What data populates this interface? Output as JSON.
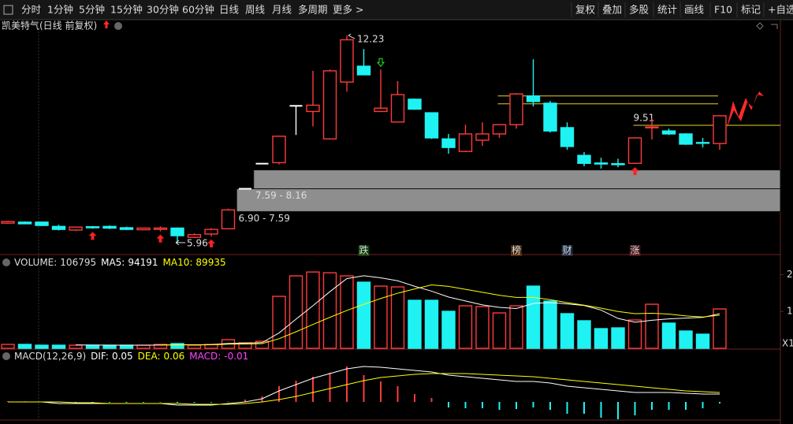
{
  "toolbar": {
    "periods": [
      "分时",
      "1分钟",
      "5分钟",
      "15分钟",
      "30分钟",
      "60分钟",
      "日线",
      "周线",
      "月线",
      "多周期",
      "更多 >"
    ],
    "active_index": 6,
    "tools": [
      "复权",
      "叠加",
      "多股",
      "统计",
      "画线",
      "F10",
      "标记",
      "+自选"
    ]
  },
  "chart_data": [
    {
      "type": "candlestick",
      "title": "凯美特气(日线 前复权)",
      "ylim": [
        5.67,
        12.35
      ],
      "colors": {
        "up": "#ff3b3b",
        "down": "#1ff2f2",
        "flat": "#ffffff"
      },
      "open": [
        6.55,
        6.58,
        6.58,
        6.45,
        6.34,
        6.44,
        6.45,
        6.41,
        6.35,
        6.36,
        6.4,
        6.12,
        6.22,
        6.38,
        7.59,
        8.35,
        8.38,
        10.1,
        9.93,
        9.1,
        10.82,
        11.3,
        9.93,
        9.61,
        10.3,
        9.89,
        9.1,
        8.72,
        9.06,
        9.25,
        9.53,
        10.4,
        10.18,
        9.44,
        8.6,
        8.37,
        8.35,
        8.36,
        9.44,
        9.34,
        9.25,
        8.99,
        8.96
      ],
      "high": [
        6.62,
        6.6,
        6.6,
        6.5,
        6.44,
        6.46,
        6.48,
        6.44,
        6.41,
        6.45,
        6.42,
        6.24,
        6.4,
        6.99,
        7.59,
        8.35,
        9.2,
        10.1,
        11.16,
        11.2,
        12.23,
        11.82,
        11.2,
        10.85,
        10.32,
        9.89,
        9.25,
        9.53,
        9.6,
        9.55,
        10.49,
        11.51,
        10.25,
        9.6,
        8.7,
        8.53,
        8.5,
        9.15,
        9.72,
        9.41,
        9.27,
        9.13,
        9.81
      ],
      "low": [
        6.53,
        6.52,
        6.46,
        6.33,
        6.31,
        6.38,
        6.37,
        6.34,
        6.33,
        6.3,
        5.96,
        6.1,
        6.15,
        6.36,
        7.59,
        8.35,
        8.33,
        9.22,
        9.48,
        9.08,
        10.53,
        11.04,
        9.93,
        9.61,
        9.98,
        9.1,
        8.65,
        8.7,
        8.89,
        9.13,
        9.41,
        10.08,
        9.29,
        8.77,
        8.27,
        8.2,
        8.24,
        8.34,
        9.08,
        9.22,
        8.92,
        8.84,
        8.77
      ],
      "close": [
        6.6,
        6.53,
        6.48,
        6.36,
        6.43,
        6.41,
        6.4,
        6.36,
        6.4,
        6.4,
        6.17,
        6.2,
        6.36,
        6.95,
        7.59,
        8.35,
        9.18,
        10.1,
        10.12,
        11.16,
        12.1,
        11.04,
        10.03,
        10.44,
        10.0,
        9.13,
        8.84,
        9.25,
        9.25,
        9.53,
        10.46,
        10.23,
        9.34,
        8.87,
        8.36,
        8.34,
        8.32,
        9.13,
        9.46,
        9.25,
        8.94,
        8.97,
        9.8
      ],
      "zones": [
        {
          "label": "7.59 - 8.16",
          "low": 7.59,
          "high": 8.16,
          "from": 14
        },
        {
          "label": "6.90 - 7.59",
          "low": 6.9,
          "high": 7.59,
          "from": 13
        }
      ],
      "levels": [
        {
          "value": 10.4,
          "from": 29,
          "to": 42,
          "color": "#e6d21e"
        },
        {
          "value": 10.16,
          "from": 29,
          "to": 42,
          "color": "#e6d21e"
        },
        {
          "value": 9.51,
          "from": 37,
          "color": "#e6d21e",
          "show_label": true
        }
      ],
      "up_arrows": [
        5,
        9,
        12,
        37
      ],
      "down_arrows": [
        22
      ],
      "events": [
        {
          "index": 21,
          "label": "跌",
          "color": "#22ee22"
        },
        {
          "index": 30,
          "label": "榜",
          "color": "#ff9a2a"
        },
        {
          "index": 33,
          "label": "财",
          "color": "#5aa8ff"
        },
        {
          "index": 37,
          "label": "涨",
          "color": "#ff5050"
        }
      ]
    },
    {
      "type": "volume",
      "label": "VOLUME:",
      "ylim": [
        0,
        218000
      ],
      "yticks": [
        {
          "value": 200000,
          "label": "2"
        },
        {
          "value": 100000,
          "label": "1"
        }
      ],
      "unit_label": "X1",
      "values": [
        10700,
        10700,
        8500,
        8500,
        8500,
        8500,
        8500,
        8500,
        8500,
        10700,
        12800,
        8500,
        10700,
        23500,
        15000,
        19200,
        141000,
        196500,
        207000,
        205000,
        196500,
        179400,
        168700,
        166600,
        130300,
        130300,
        100400,
        115300,
        113200,
        96100,
        115300,
        168700,
        128200,
        94000,
        74800,
        53400,
        55500,
        76900,
        119600,
        68400,
        47000,
        38400,
        106795
      ],
      "series": [
        {
          "name": "MA5:",
          "color": "#ffffff",
          "values": [
            null,
            null,
            null,
            null,
            9380,
            8940,
            8500,
            8500,
            8500,
            8940,
            9800,
            9800,
            10240,
            13240,
            14100,
            15380,
            41880,
            79040,
            115740,
            153740,
            189200,
            196880,
            191320,
            183240,
            168300,
            155060,
            139260,
            128580,
            117900,
            111060,
            108060,
            121720,
            124300,
            120460,
            116200,
            103820,
            81180,
            70920,
            76040,
            80000,
            82000,
            84000,
            94191
          ]
        },
        {
          "name": "MA10:",
          "color": "#ffff00",
          "values": [
            null,
            null,
            null,
            null,
            null,
            null,
            null,
            null,
            null,
            9160,
            9370,
            9370,
            9590,
            11090,
            11740,
            12810,
            26070,
            44870,
            64740,
            84170,
            102700,
            119400,
            135200,
            149500,
            161000,
            172000,
            168000,
            160000,
            152000,
            144000,
            138000,
            138000,
            132000,
            124000,
            117000,
            109000,
            100000,
            94000,
            95000,
            93000,
            88000,
            85000,
            89935
          ]
        }
      ]
    },
    {
      "type": "macd",
      "title": "MACD(12,26,9)",
      "ylim": [
        -0.1,
        0.275
      ],
      "value_name": "MACD:",
      "value_color": "#ff44ff",
      "values": [
        0.005,
        0.004,
        0.002,
        -0.002,
        -0.003,
        -0.004,
        -0.004,
        -0.005,
        -0.004,
        -0.003,
        -0.005,
        -0.006,
        -0.004,
        0.003,
        0.015,
        0.035,
        0.1,
        0.135,
        0.16,
        0.185,
        0.225,
        0.17,
        0.13,
        0.1,
        0.05,
        0.025,
        -0.035,
        -0.04,
        -0.04,
        -0.05,
        -0.045,
        -0.035,
        -0.05,
        -0.075,
        -0.075,
        -0.1,
        -0.11,
        -0.085,
        -0.05,
        -0.05,
        -0.05,
        -0.04,
        -0.01
      ],
      "series": [
        {
          "name": "DIF:",
          "color": "#ffffff",
          "values": [
            0,
            0,
            0,
            -0.01,
            -0.01,
            -0.01,
            -0.01,
            -0.01,
            -0.01,
            -0.01,
            -0.02,
            -0.02,
            -0.02,
            -0.01,
            0,
            0.02,
            0.07,
            0.11,
            0.15,
            0.18,
            0.21,
            0.225,
            0.22,
            0.21,
            0.2,
            0.19,
            0.17,
            0.16,
            0.15,
            0.14,
            0.13,
            0.13,
            0.12,
            0.1,
            0.09,
            0.08,
            0.07,
            0.06,
            0.06,
            0.06,
            0.055,
            0.05,
            0.05
          ]
        },
        {
          "name": "DEA:",
          "color": "#ffff00",
          "values": [
            0,
            0,
            0,
            0,
            -0.005,
            -0.005,
            -0.01,
            -0.01,
            -0.01,
            -0.01,
            -0.01,
            -0.015,
            -0.015,
            -0.015,
            -0.01,
            0,
            0.015,
            0.035,
            0.06,
            0.085,
            0.11,
            0.135,
            0.155,
            0.165,
            0.175,
            0.18,
            0.18,
            0.18,
            0.175,
            0.17,
            0.165,
            0.16,
            0.15,
            0.14,
            0.13,
            0.12,
            0.11,
            0.1,
            0.09,
            0.08,
            0.07,
            0.065,
            0.06
          ]
        }
      ]
    }
  ]
}
